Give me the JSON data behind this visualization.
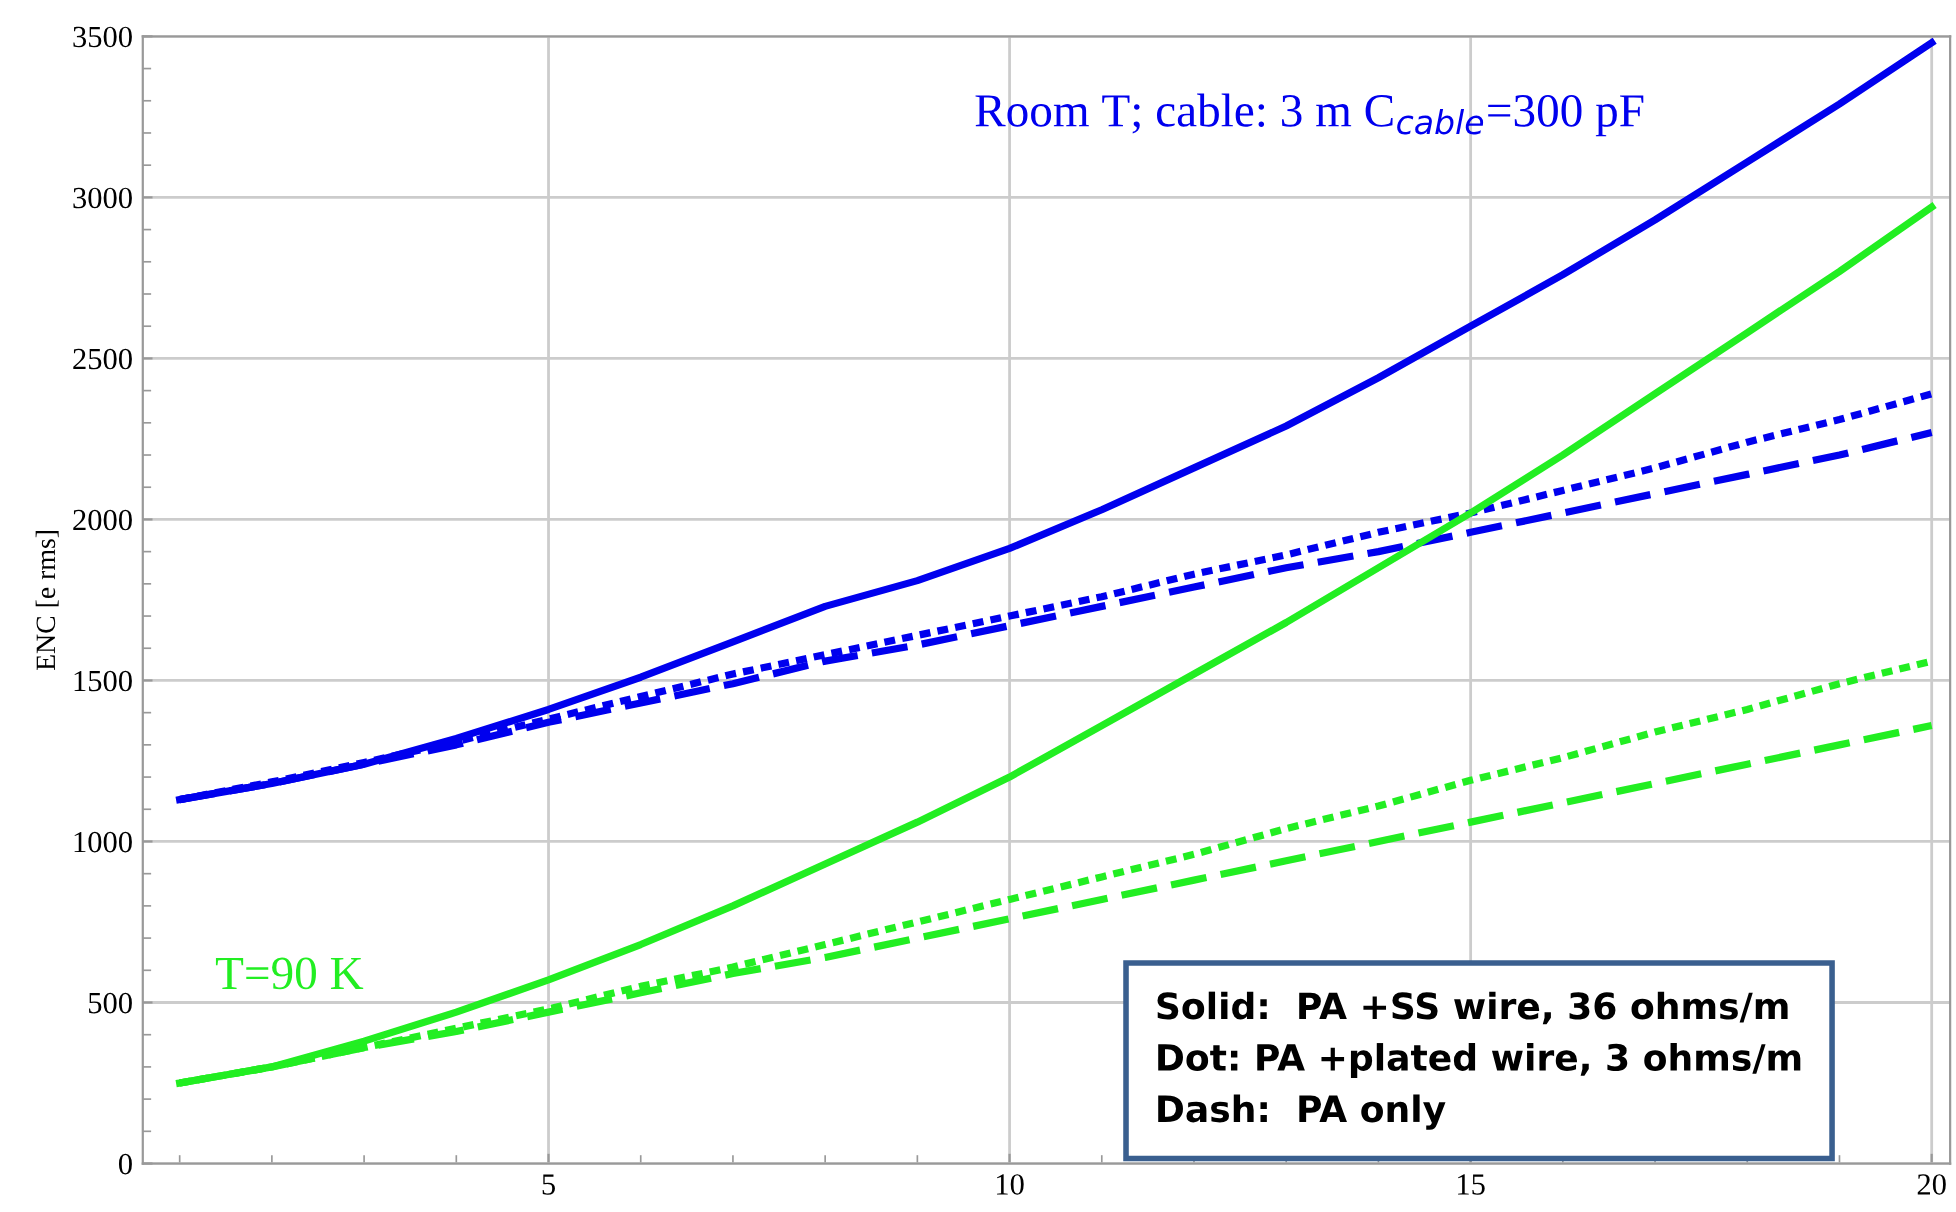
{
  "chart_data": {
    "type": "line",
    "ylabel": "ENC [e rms]",
    "xlim": [
      0.6,
      20.2
    ],
    "ylim": [
      0,
      3500
    ],
    "xticks": [
      5,
      10,
      15,
      20
    ],
    "yticks": [
      0,
      500,
      1000,
      1500,
      2000,
      2500,
      3000,
      3500
    ],
    "grid": true,
    "marker": "none",
    "x": [
      1,
      2,
      3,
      4,
      5,
      6,
      7,
      8,
      9,
      10,
      11,
      12,
      13,
      14,
      15,
      16,
      17,
      18,
      19,
      20
    ],
    "series": [
      {
        "color": "#0000ee",
        "line_style": "solid",
        "values": [
          1130,
          1180,
          1240,
          1320,
          1410,
          1510,
          1620,
          1730,
          1810,
          1910,
          2030,
          2160,
          2290,
          2440,
          2600,
          2760,
          2930,
          3110,
          3290,
          3480
        ]
      },
      {
        "color": "#0000ee",
        "line_style": "dotted",
        "values": [
          1130,
          1185,
          1245,
          1310,
          1380,
          1450,
          1520,
          1580,
          1640,
          1700,
          1760,
          1830,
          1890,
          1960,
          2020,
          2090,
          2160,
          2240,
          2310,
          2390
        ]
      },
      {
        "color": "#0000ee",
        "line_style": "dashed",
        "values": [
          1130,
          1180,
          1240,
          1300,
          1370,
          1430,
          1490,
          1560,
          1610,
          1670,
          1730,
          1790,
          1850,
          1900,
          1960,
          2020,
          2080,
          2140,
          2200,
          2270
        ]
      },
      {
        "color": "#22ee22",
        "line_style": "solid",
        "values": [
          250,
          300,
          380,
          470,
          570,
          680,
          800,
          930,
          1060,
          1200,
          1360,
          1520,
          1680,
          1850,
          2020,
          2200,
          2390,
          2580,
          2770,
          2970
        ]
      },
      {
        "color": "#22ee22",
        "line_style": "dotted",
        "values": [
          250,
          300,
          360,
          420,
          480,
          550,
          610,
          680,
          750,
          820,
          890,
          960,
          1040,
          1110,
          1190,
          1260,
          1340,
          1410,
          1490,
          1560
        ]
      },
      {
        "color": "#22ee22",
        "line_style": "dashed",
        "values": [
          250,
          300,
          360,
          410,
          470,
          530,
          590,
          640,
          700,
          760,
          820,
          880,
          940,
          1000,
          1060,
          1120,
          1180,
          1240,
          1300,
          1360
        ]
      }
    ],
    "annotations": [
      "Room T; cable: 3 m C$_{cable}$=300 pF",
      "T=90 K",
      "Solid:  PA +SS wire, 36 ohms/m\nDot: PA +plated wire, 3 ohms/m\nDash:  PA only"
    ]
  }
}
